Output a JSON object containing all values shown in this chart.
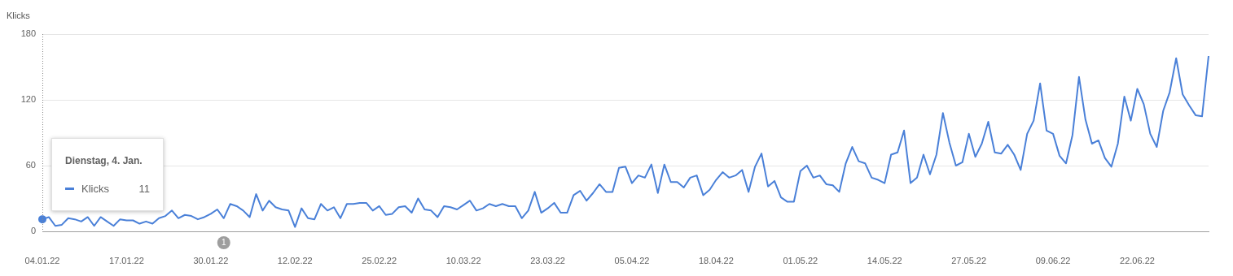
{
  "chart_data": {
    "type": "line",
    "ylabel": "Klicks",
    "categories": [
      "04.01.22",
      null,
      null,
      null,
      null,
      null,
      null,
      null,
      null,
      null,
      null,
      null,
      null,
      "17.01.22",
      null,
      null,
      null,
      null,
      null,
      null,
      null,
      null,
      null,
      null,
      null,
      null,
      "30.01.22",
      null,
      null,
      null,
      null,
      null,
      null,
      null,
      null,
      null,
      null,
      null,
      null,
      "12.02.22",
      null,
      null,
      null,
      null,
      null,
      null,
      null,
      null,
      null,
      null,
      null,
      null,
      "25.02.22",
      null,
      null,
      null,
      null,
      null,
      null,
      null,
      null,
      null,
      null,
      null,
      null,
      "10.03.22",
      null,
      null,
      null,
      null,
      null,
      null,
      null,
      null,
      null,
      null,
      null,
      null,
      "23.03.22",
      null,
      null,
      null,
      null,
      null,
      null,
      null,
      null,
      null,
      null,
      null,
      null,
      "05.04.22",
      null,
      null,
      null,
      null,
      null,
      null,
      null,
      null,
      null,
      null,
      null,
      null,
      "18.04.22",
      null,
      null,
      null,
      null,
      null,
      null,
      null,
      null,
      null,
      null,
      null,
      null,
      "01.05.22",
      null,
      null,
      null,
      null,
      null,
      null,
      null,
      null,
      null,
      null,
      null,
      null,
      "14.05.22",
      null,
      null,
      null,
      null,
      null,
      null,
      null,
      null,
      null,
      null,
      null,
      null,
      "27.05.22",
      null,
      null,
      null,
      null,
      null,
      null,
      null,
      null,
      null,
      null,
      null,
      null,
      "09.06.22",
      null,
      null,
      null,
      null,
      null,
      null,
      null,
      null,
      null,
      null,
      null,
      null,
      "22.06.22",
      null,
      null,
      null,
      null,
      null,
      null,
      null,
      null,
      null,
      null,
      null
    ],
    "series": [
      {
        "name": "Klicks",
        "color": "#4a80d8",
        "values": [
          11,
          13,
          5,
          6,
          12,
          11,
          9,
          13,
          5,
          13,
          9,
          5,
          11,
          10,
          10,
          7,
          9,
          7,
          12,
          14,
          19,
          12,
          15,
          14,
          11,
          13,
          16,
          20,
          12,
          25,
          23,
          19,
          13,
          34,
          19,
          28,
          22,
          20,
          19,
          4,
          21,
          12,
          11,
          25,
          19,
          22,
          12,
          25,
          25,
          26,
          26,
          19,
          23,
          15,
          16,
          22,
          23,
          17,
          30,
          20,
          19,
          13,
          23,
          22,
          20,
          24,
          28,
          19,
          21,
          25,
          23,
          25,
          23,
          23,
          12,
          19,
          36,
          17,
          21,
          26,
          17,
          17,
          33,
          37,
          28,
          35,
          43,
          36,
          36,
          58,
          59,
          44,
          51,
          49,
          61,
          35,
          61,
          45,
          45,
          40,
          49,
          51,
          33,
          38,
          47,
          54,
          49,
          51,
          56,
          36,
          59,
          71,
          41,
          46,
          31,
          27,
          27,
          55,
          60,
          49,
          51,
          43,
          42,
          36,
          62,
          77,
          64,
          62,
          49,
          47,
          44,
          70,
          72,
          92,
          44,
          49,
          70,
          52,
          70,
          108,
          81,
          60,
          63,
          89,
          68,
          80,
          100,
          72,
          71,
          79,
          70,
          56,
          89,
          101,
          135,
          92,
          89,
          69,
          62,
          88,
          141,
          102,
          80,
          83,
          67,
          59,
          80,
          123,
          101,
          130,
          116,
          89,
          77,
          110,
          127,
          158,
          125,
          115,
          106,
          105,
          160
        ]
      }
    ],
    "ylim": [
      0,
      180
    ],
    "yticks": [
      0,
      60,
      120,
      180
    ],
    "grid": "y",
    "legend": "left",
    "marker": "none",
    "line_style": "solid",
    "annotations": [
      "Dienstag, 4. Jan.",
      "11",
      "1"
    ]
  }
}
